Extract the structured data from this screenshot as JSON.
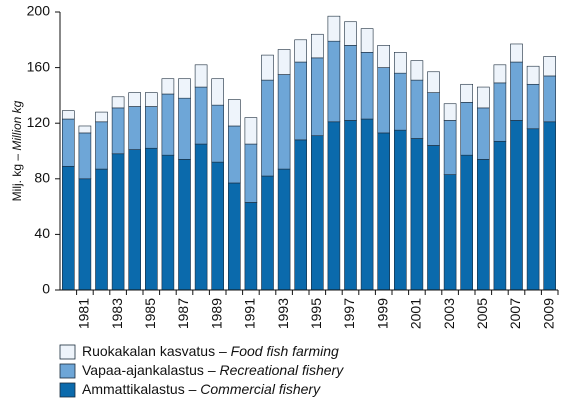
{
  "chart_data": {
    "type": "bar",
    "stacked": true,
    "y_label": "Milj. kg – Million kg",
    "categories": [
      null,
      "1981",
      null,
      "1983",
      null,
      "1985",
      null,
      "1987",
      null,
      "1989",
      null,
      "1991",
      null,
      "1993",
      null,
      "1995",
      null,
      "1997",
      null,
      "1999",
      null,
      "2001",
      null,
      "2003",
      null,
      "2005",
      null,
      "2007",
      null,
      "2009"
    ],
    "series": [
      {
        "name": "Ammattikalastus – Commercial fishery",
        "color": "#0b6aac",
        "values": [
          89,
          80,
          87,
          98,
          101,
          102,
          97,
          94,
          105,
          92,
          77,
          63,
          82,
          87,
          108,
          111,
          121,
          122,
          123,
          113,
          115,
          109,
          104,
          83,
          97,
          94,
          107,
          122,
          116,
          121
        ]
      },
      {
        "name": "Vapaa-ajankalastus – Recreational fishery",
        "color": "#6ea6d7",
        "values": [
          34,
          33,
          34,
          33,
          31,
          30,
          44,
          44,
          41,
          41,
          41,
          42,
          69,
          68,
          56,
          56,
          58,
          54,
          48,
          47,
          41,
          42,
          38,
          39,
          38,
          37,
          42,
          42,
          32,
          33
        ]
      },
      {
        "name": "Ruokakalan kasvatus – Food fish farming",
        "color": "#eef4fb",
        "values": [
          6,
          5,
          7,
          8,
          10,
          10,
          11,
          14,
          16,
          19,
          19,
          19,
          18,
          18,
          16,
          17,
          18,
          17,
          17,
          16,
          15,
          14,
          15,
          12,
          13,
          15,
          13,
          13,
          13,
          14
        ]
      }
    ],
    "ylim": [
      0,
      200
    ],
    "yticks": [
      0,
      40,
      80,
      120,
      160,
      200
    ],
    "grid": false
  }
}
